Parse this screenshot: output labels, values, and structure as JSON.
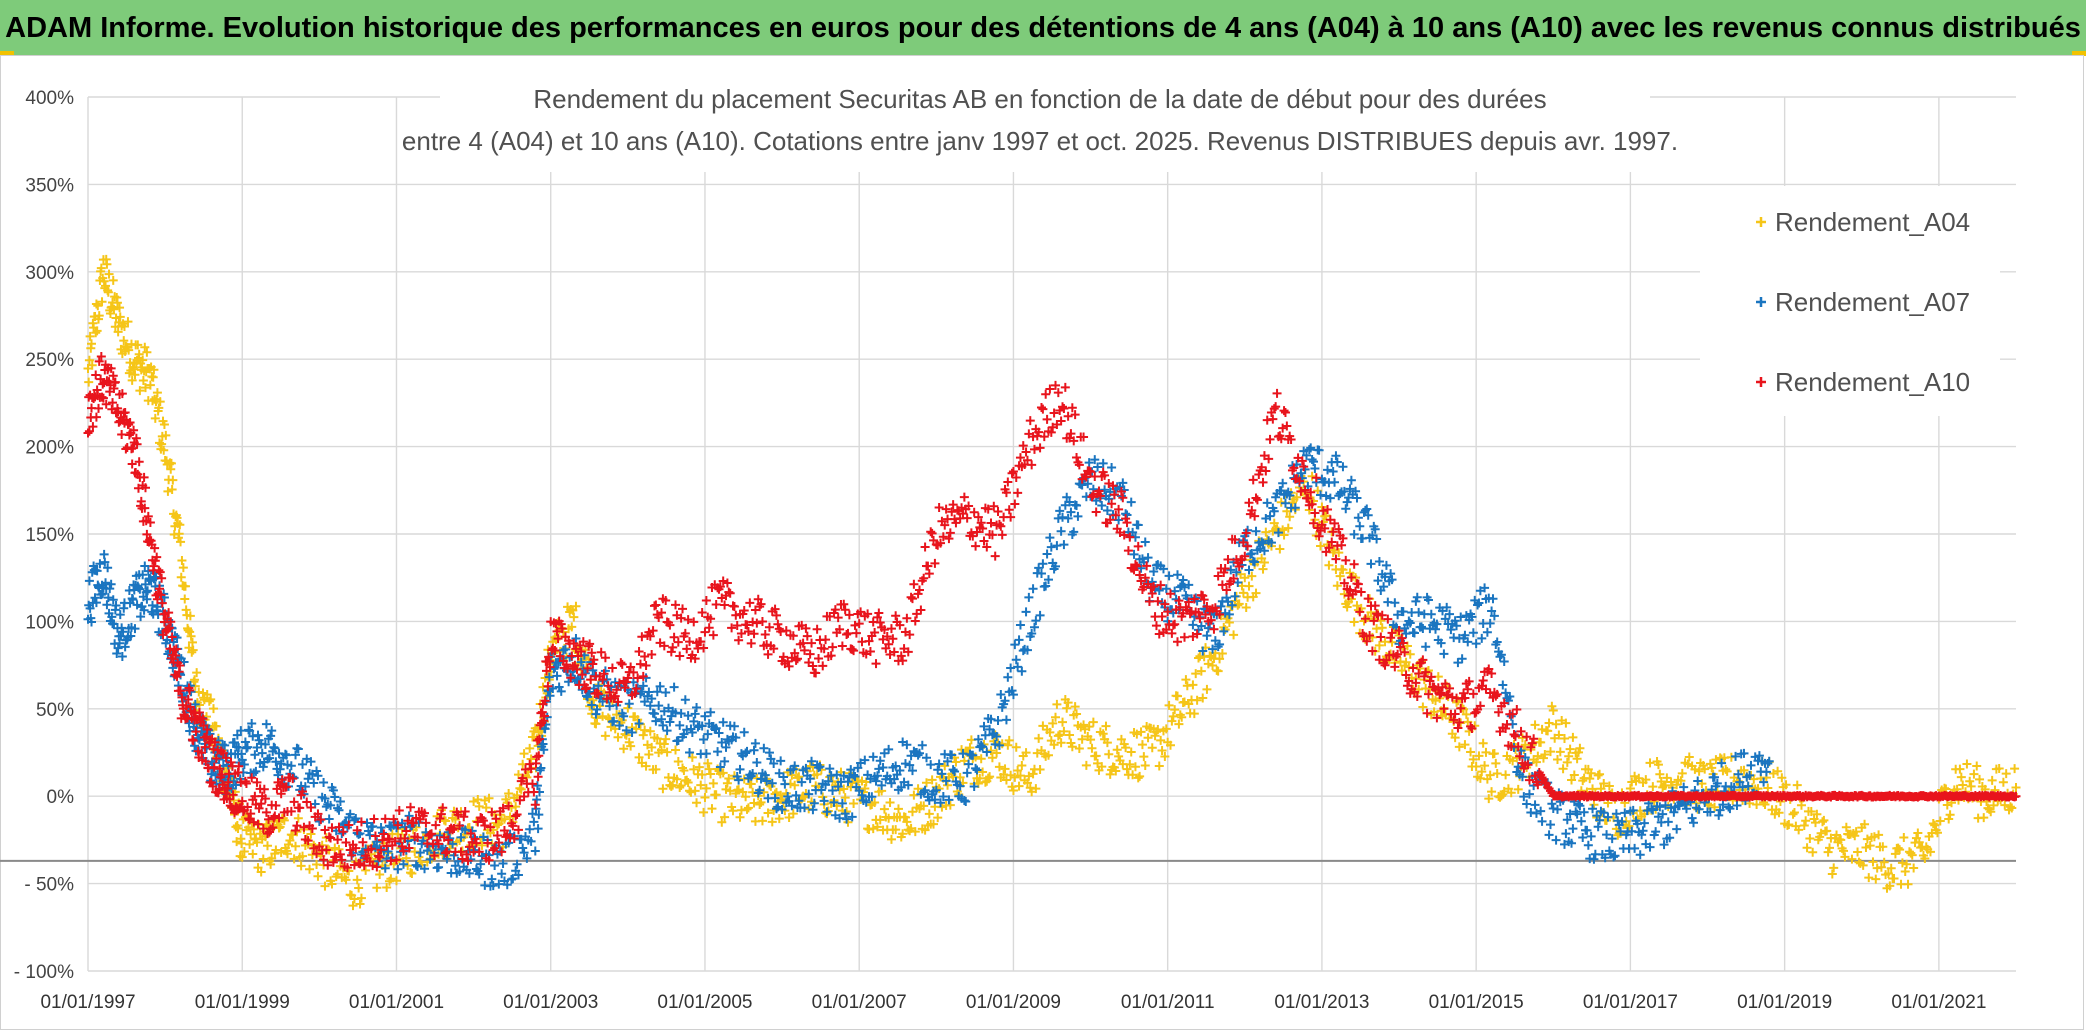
{
  "banner": {
    "text": "ADAM Informe. Evolution historique des performances en euros pour des détentions de 4 ans (A04) à 10 ans (A10) avec les revenus connus distribués"
  },
  "chart_data": {
    "type": "scatter",
    "title": "Rendement du placement Securitas AB en fonction de la date de début pour des durées",
    "subtitle": "entre 4 (A04) et 10 ans (A10). Cotations entre janv 1997 et oct. 2025. Revenus DISTRIBUES depuis avr. 1997.",
    "xlabel": "",
    "ylabel": "",
    "x_ticks": [
      "01/01/1997",
      "01/01/1999",
      "01/01/2001",
      "01/01/2003",
      "01/01/2005",
      "01/01/2007",
      "01/01/2009",
      "01/01/2011",
      "01/01/2013",
      "01/01/2015",
      "01/01/2017",
      "01/01/2019",
      "01/01/2021"
    ],
    "y_ticks": [
      "400%",
      "350%",
      "300%",
      "250%",
      "200%",
      "150%",
      "100%",
      "50%",
      "0%",
      "- 50%",
      "- 100%"
    ],
    "xlim": [
      1997.0,
      2022.0
    ],
    "ylim": [
      -100,
      400
    ],
    "grid": true,
    "legend_position": "right",
    "series": [
      {
        "name": "Rendement_A04",
        "color": "#f5c518",
        "x": [
          1997.0,
          1997.2,
          1997.4,
          1997.6,
          1997.8,
          1998.0,
          1998.2,
          1998.4,
          1998.6,
          1998.8,
          1999.0,
          1999.3,
          1999.6,
          2000.0,
          2000.4,
          2000.8,
          2001.2,
          2001.6,
          2002.0,
          2002.4,
          2002.8,
          2003.0,
          2003.3,
          2003.6,
          2004.0,
          2004.4,
          2004.8,
          2005.2,
          2005.6,
          2006.0,
          2006.4,
          2006.8,
          2007.2,
          2007.6,
          2008.0,
          2008.4,
          2008.8,
          2009.2,
          2009.6,
          2010.0,
          2010.4,
          2010.8,
          2011.2,
          2011.6,
          2012.0,
          2012.4,
          2012.8,
          2013.2,
          2013.6,
          2014.0,
          2014.4,
          2014.8,
          2015.2,
          2015.6,
          2016.0,
          2016.4,
          2016.8,
          2017.2,
          2017.6,
          2018.0,
          2018.4,
          2018.8,
          2019.2,
          2019.6,
          2020.0,
          2020.4,
          2020.8,
          2021.2,
          2021.6,
          2022.0
        ],
        "values": [
          240,
          300,
          270,
          250,
          240,
          200,
          140,
          60,
          40,
          10,
          -25,
          -30,
          -20,
          -35,
          -50,
          -40,
          -30,
          -20,
          -15,
          -15,
          25,
          80,
          100,
          50,
          40,
          20,
          10,
          0,
          -5,
          0,
          5,
          0,
          -5,
          -15,
          0,
          20,
          25,
          10,
          45,
          30,
          25,
          25,
          50,
          80,
          120,
          150,
          180,
          130,
          100,
          80,
          60,
          40,
          10,
          20,
          40,
          10,
          -10,
          5,
          10,
          5,
          10,
          5,
          -10,
          -30,
          -30,
          -40,
          -35,
          10,
          0,
          5
        ]
      },
      {
        "name": "Rendement_A07",
        "color": "#1a75c0",
        "x": [
          1997.0,
          1997.2,
          1997.4,
          1997.6,
          1997.8,
          1998.0,
          1998.2,
          1998.4,
          1998.6,
          1998.8,
          1999.0,
          1999.3,
          1999.6,
          2000.0,
          2000.4,
          2000.8,
          2001.2,
          2001.6,
          2002.0,
          2002.4,
          2002.8,
          2003.0,
          2003.3,
          2003.6,
          2004.0,
          2004.4,
          2004.8,
          2005.2,
          2005.6,
          2006.0,
          2006.4,
          2006.8,
          2007.2,
          2007.6,
          2008.0,
          2008.4,
          2008.8,
          2009.2,
          2009.6,
          2010.0,
          2010.4,
          2010.8,
          2011.2,
          2011.6,
          2012.0,
          2012.4,
          2012.8,
          2013.2,
          2013.6,
          2014.0,
          2014.4,
          2014.8,
          2015.2,
          2015.6,
          2016.0,
          2016.4,
          2016.8,
          2017.2,
          2017.6,
          2018.0,
          2018.4,
          2018.8
        ],
        "values": [
          110,
          130,
          90,
          110,
          120,
          100,
          70,
          40,
          20,
          15,
          25,
          30,
          20,
          0,
          -20,
          -30,
          -25,
          -30,
          -35,
          -40,
          -20,
          70,
          80,
          60,
          50,
          55,
          40,
          30,
          20,
          5,
          5,
          0,
          10,
          20,
          10,
          10,
          40,
          100,
          150,
          180,
          170,
          120,
          110,
          90,
          140,
          160,
          190,
          180,
          150,
          100,
          100,
          90,
          110,
          10,
          -10,
          -20,
          -25,
          -20,
          -10,
          0,
          10,
          20
        ]
      },
      {
        "name": "Rendement_A10",
        "color": "#e8141c",
        "x": [
          1997.0,
          1997.2,
          1997.4,
          1997.6,
          1997.8,
          1998.0,
          1998.2,
          1998.4,
          1998.6,
          1998.8,
          1999.0,
          1999.3,
          1999.6,
          2000.0,
          2000.4,
          2000.8,
          2001.2,
          2001.6,
          2002.0,
          2002.4,
          2002.8,
          2003.0,
          2003.3,
          2003.6,
          2004.0,
          2004.4,
          2004.8,
          2005.2,
          2005.6,
          2006.0,
          2006.4,
          2006.8,
          2007.2,
          2007.6,
          2008.0,
          2008.4,
          2008.8,
          2009.2,
          2009.6,
          2010.0,
          2010.4,
          2010.8,
          2011.2,
          2011.6,
          2012.0,
          2012.4,
          2012.8,
          2013.2,
          2013.6,
          2014.0,
          2014.4,
          2014.8,
          2015.2,
          2015.6,
          2016.0,
          2016.4,
          2016.8,
          2017.2,
          2017.6,
          2018.0,
          2018.4,
          2018.8,
          2019.2,
          2019.6,
          2020.0,
          2020.4,
          2020.8,
          2021.2,
          2021.6,
          2022.0
        ],
        "values": [
          220,
          240,
          220,
          200,
          150,
          100,
          60,
          40,
          20,
          10,
          0,
          -10,
          0,
          -25,
          -30,
          -25,
          -20,
          -20,
          -25,
          -20,
          10,
          90,
          80,
          70,
          60,
          100,
          90,
          110,
          100,
          90,
          80,
          100,
          90,
          90,
          150,
          160,
          150,
          200,
          230,
          180,
          160,
          110,
          100,
          110,
          150,
          220,
          180,
          140,
          100,
          80,
          60,
          50,
          60,
          30,
          0,
          0,
          0,
          0,
          0,
          0,
          0,
          0,
          0,
          0,
          0,
          0,
          0,
          0,
          0,
          0
        ]
      }
    ]
  }
}
